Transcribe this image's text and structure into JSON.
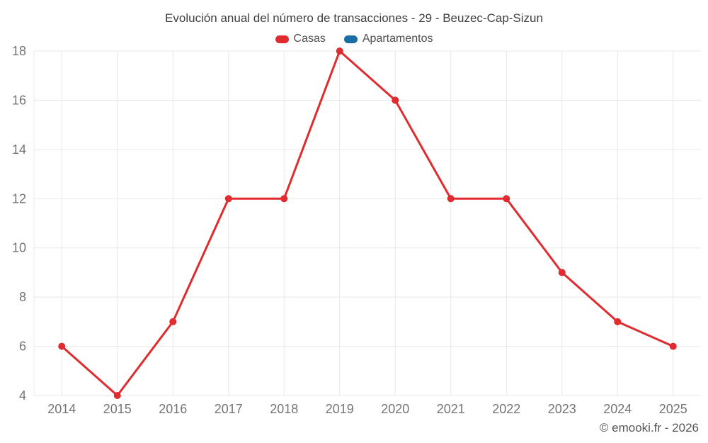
{
  "header": {
    "title": "Evolución anual del número de transacciones - 29 - Beuzec-Cap-Sizun"
  },
  "legend": {
    "items": [
      {
        "label": "Casas",
        "color": "#e02b2f"
      },
      {
        "label": "Apartamentos",
        "color": "#1a6da5"
      }
    ]
  },
  "footer": {
    "text": "© emooki.fr - 2026"
  },
  "chart_data": {
    "type": "line",
    "title": "Evolución anual del número de transacciones - 29 - Beuzec-Cap-Sizun",
    "categories": [
      "2014",
      "2015",
      "2016",
      "2017",
      "2018",
      "2019",
      "2020",
      "2021",
      "2022",
      "2023",
      "2024",
      "2025"
    ],
    "series": [
      {
        "name": "Casas",
        "color": "#e02b2f",
        "values": [
          6,
          4,
          7,
          12,
          12,
          18,
          16,
          12,
          12,
          9,
          7,
          6
        ]
      },
      {
        "name": "Apartamentos",
        "color": "#1a6da5",
        "values": []
      }
    ],
    "xlabel": "",
    "ylabel": "",
    "ylim": [
      4,
      18
    ],
    "yticks": [
      4,
      6,
      8,
      10,
      12,
      14,
      16,
      18
    ],
    "grid": true,
    "grid_color": "#e8e8e8",
    "tick_label_color": "#757575",
    "legend_position": "top"
  }
}
